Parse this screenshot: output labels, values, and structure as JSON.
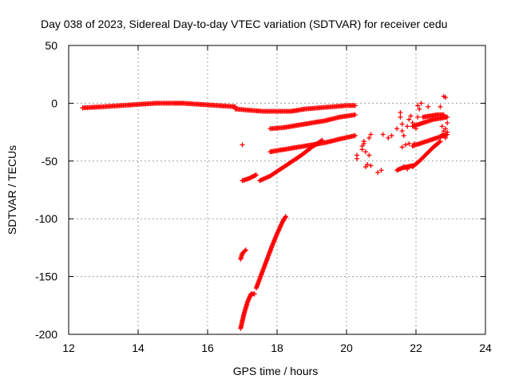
{
  "chart_data": {
    "type": "scatter",
    "title": "Day 038 of 2023, Sidereal Day-to-day VTEC variation (SDTVAR) for receiver cedu",
    "xlabel": "GPS time / hours",
    "ylabel": "SDTVAR / TECUs",
    "xlim": [
      12,
      24
    ],
    "ylim": [
      -200,
      50
    ],
    "xticks": [
      12,
      14,
      16,
      18,
      20,
      22,
      24
    ],
    "yticks": [
      50,
      0,
      -50,
      -100,
      -150,
      -200
    ],
    "grid": true,
    "marker": "+",
    "color": "#ff0000",
    "series": [
      {
        "name": "track-1",
        "kind": "line",
        "x": [
          12.4,
          13.0,
          13.5,
          14.0,
          14.5,
          15.0,
          15.3,
          15.8,
          16.3,
          16.8
        ],
        "y": [
          -4,
          -3,
          -2,
          -1,
          0,
          0,
          0,
          -1,
          -2,
          -3
        ]
      },
      {
        "name": "track-2",
        "kind": "line",
        "x": [
          16.8,
          17.2,
          17.6,
          18.0,
          18.4,
          18.8,
          19.2,
          19.6,
          20.0,
          20.25
        ],
        "y": [
          -5,
          -6,
          -7,
          -7,
          -7,
          -5,
          -4,
          -3,
          -2,
          -2
        ]
      },
      {
        "name": "track-3",
        "kind": "line",
        "x": [
          17.8,
          18.2,
          18.6,
          19.0,
          19.4,
          19.8,
          20.25
        ],
        "y": [
          -22,
          -21,
          -19,
          -17,
          -15,
          -12,
          -10
        ]
      },
      {
        "name": "track-4",
        "kind": "line",
        "x": [
          17.8,
          18.2,
          18.6,
          19.0,
          19.4,
          19.8,
          20.25
        ],
        "y": [
          -42,
          -40,
          -38,
          -36,
          -34,
          -31,
          -28
        ]
      },
      {
        "name": "track-5",
        "kind": "line",
        "x": [
          17.0,
          17.2,
          17.4
        ],
        "y": [
          -67,
          -65,
          -62
        ]
      },
      {
        "name": "track-6",
        "kind": "line",
        "x": [
          17.5,
          17.8,
          18.1,
          18.4,
          18.7,
          19.0,
          19.3
        ],
        "y": [
          -67,
          -63,
          -57,
          -51,
          -45,
          -38,
          -32
        ]
      },
      {
        "name": "track-7",
        "kind": "line",
        "x": [
          16.95,
          17.05,
          17.15,
          17.25,
          17.35
        ],
        "y": [
          -195,
          -182,
          -172,
          -165,
          -165
        ]
      },
      {
        "name": "track-8",
        "kind": "line",
        "x": [
          17.4,
          17.55,
          17.7,
          17.85,
          18.0,
          18.15,
          18.25
        ],
        "y": [
          -160,
          -148,
          -136,
          -124,
          -113,
          -103,
          -98
        ]
      },
      {
        "name": "track-9",
        "kind": "line",
        "x": [
          16.95,
          17.0,
          17.1
        ],
        "y": [
          -135,
          -130,
          -127
        ]
      },
      {
        "name": "cluster-1",
        "kind": "points",
        "x": [
          17.0,
          20.3,
          20.45,
          20.5,
          20.55,
          20.65,
          20.7,
          20.55,
          20.6,
          20.7,
          20.3,
          20.45,
          20.5,
          20.65
        ],
        "y": [
          -36,
          -45,
          -37,
          -33,
          -42,
          -30,
          -27,
          -55,
          -53,
          -54,
          -48,
          -40,
          -35,
          -45
        ]
      },
      {
        "name": "cluster-2",
        "kind": "points",
        "x": [
          20.9,
          21.0,
          21.05,
          21.2,
          21.3,
          21.45,
          21.55,
          21.6,
          21.65,
          21.75,
          21.8,
          21.6,
          21.7,
          21.8,
          21.65,
          21.75,
          21.55,
          21.6,
          21.85,
          21.9,
          22.0,
          22.05,
          21.95,
          22.05
        ],
        "y": [
          -60,
          -58,
          -27,
          -30,
          -28,
          -22,
          -12,
          -18,
          -28,
          -20,
          -14,
          -38,
          -36,
          -35,
          -55,
          -57,
          -8,
          -24,
          -11,
          -17,
          -22,
          -12,
          -35,
          -2
        ]
      },
      {
        "name": "track-10",
        "kind": "line",
        "x": [
          21.45,
          21.6,
          21.75,
          21.9
        ],
        "y": [
          -58,
          -56,
          -55,
          -54
        ]
      },
      {
        "name": "track-11",
        "kind": "line",
        "x": [
          21.9,
          22.1,
          22.3,
          22.5,
          22.7
        ],
        "y": [
          -55,
          -50,
          -44,
          -38,
          -33
        ]
      },
      {
        "name": "track-12",
        "kind": "line",
        "x": [
          21.9,
          22.1,
          22.3,
          22.5,
          22.7,
          22.9
        ],
        "y": [
          -37,
          -35,
          -33,
          -31,
          -29,
          -27
        ]
      },
      {
        "name": "track-13",
        "kind": "line",
        "x": [
          21.9,
          22.1,
          22.3,
          22.5,
          22.7,
          22.9
        ],
        "y": [
          -20,
          -18,
          -16,
          -14,
          -13,
          -12
        ]
      },
      {
        "name": "track-14",
        "kind": "line",
        "x": [
          22.2,
          22.4,
          22.6,
          22.8
        ],
        "y": [
          -12,
          -11,
          -10,
          -10
        ]
      },
      {
        "name": "cluster-3",
        "kind": "points",
        "x": [
          22.8,
          22.85,
          22.9,
          22.75,
          22.8,
          22.85,
          22.8,
          22.85,
          22.9,
          22.15,
          22.35,
          22.7,
          22.1,
          22.75
        ],
        "y": [
          6,
          5,
          -17,
          -20,
          -24,
          -22,
          -28,
          -30,
          -25,
          0,
          -3,
          -3,
          -5,
          -27
        ]
      }
    ]
  }
}
